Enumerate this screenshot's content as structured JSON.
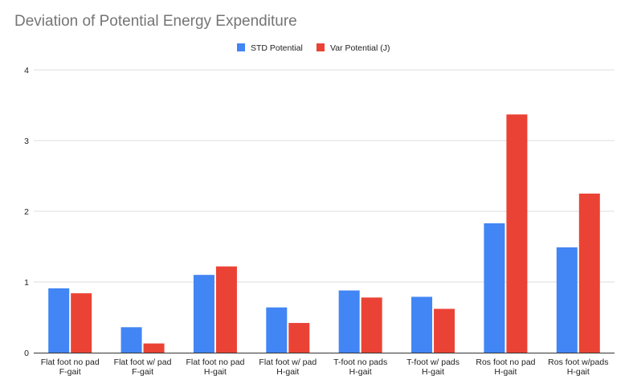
{
  "chart_data": {
    "type": "bar",
    "title": "Deviation of Potential Energy Expenditure",
    "categories": [
      [
        "Flat foot no pad",
        "F-gait"
      ],
      [
        "Flat foot w/ pad",
        "F-gait"
      ],
      [
        "Flat foot no pad",
        "H-gait"
      ],
      [
        "Flat foot w/ pad",
        "H-gait"
      ],
      [
        "T-foot no pads",
        "H-gait"
      ],
      [
        "T-foot w/ pads",
        "H-gait"
      ],
      [
        "Ros foot no pad",
        "H-gait"
      ],
      [
        "Ros foot w/pads",
        "H-gait"
      ]
    ],
    "series": [
      {
        "name": "STD Potential",
        "color": "#4285f4",
        "values": [
          0.91,
          0.36,
          1.1,
          0.64,
          0.88,
          0.79,
          1.83,
          1.49
        ]
      },
      {
        "name": "Var Potential (J)",
        "color": "#ea4335",
        "values": [
          0.84,
          0.13,
          1.22,
          0.42,
          0.78,
          0.62,
          3.37,
          2.25
        ]
      }
    ],
    "ylim": [
      0,
      4
    ],
    "yticks": [
      "0",
      "1",
      "2",
      "3",
      "4"
    ],
    "xlabel": "",
    "ylabel": "",
    "grid": true,
    "legend_position": "top"
  }
}
